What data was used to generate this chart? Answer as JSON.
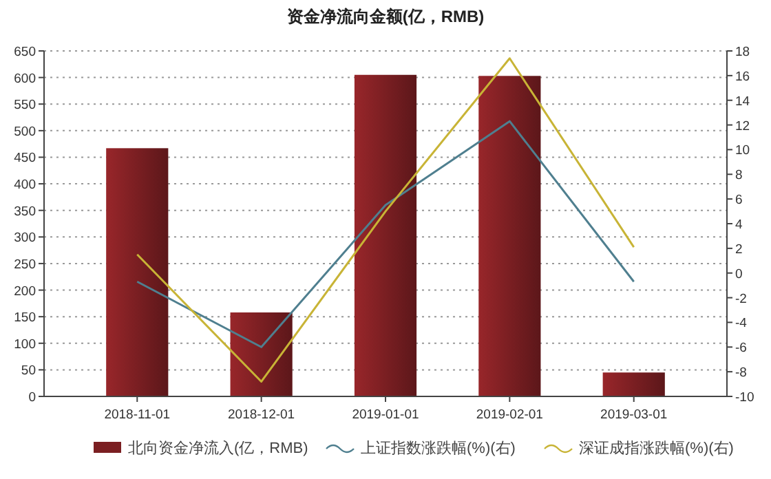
{
  "chart_data": {
    "type": "bar",
    "title": "资金净流向金额(亿，RMB)",
    "categories": [
      "2018-11-01",
      "2018-12-01",
      "2019-01-01",
      "2019-02-01",
      "2019-03-01"
    ],
    "series": [
      {
        "name": "北向资金净流入(亿，RMB)",
        "color": "#7b1f22",
        "values": [
          467,
          158,
          605,
          603,
          45
        ]
      },
      {
        "name": "上证指数涨跌幅(%)(右)",
        "type": "line",
        "axis": "y2",
        "color": "#4f7f8f",
        "values": [
          -0.7,
          -6,
          5.5,
          12.3,
          -0.7
        ]
      },
      {
        "name": "深证成指涨跌幅(%)(右)",
        "type": "line",
        "axis": "y2",
        "color": "#c8b436",
        "values": [
          1.5,
          -8.8,
          5,
          17.4,
          2.1
        ]
      }
    ],
    "ylim": [
      0,
      650
    ],
    "yticks": [
      0,
      50,
      100,
      150,
      200,
      250,
      300,
      350,
      400,
      450,
      500,
      550,
      600,
      650
    ],
    "y2lim": [
      -10,
      18
    ],
    "y2ticks": [
      -10,
      -8,
      -6,
      -4,
      -2,
      0,
      2,
      4,
      6,
      8,
      10,
      12,
      14,
      16,
      18
    ],
    "grid": "y",
    "legend": "bottom",
    "marker": "none"
  }
}
